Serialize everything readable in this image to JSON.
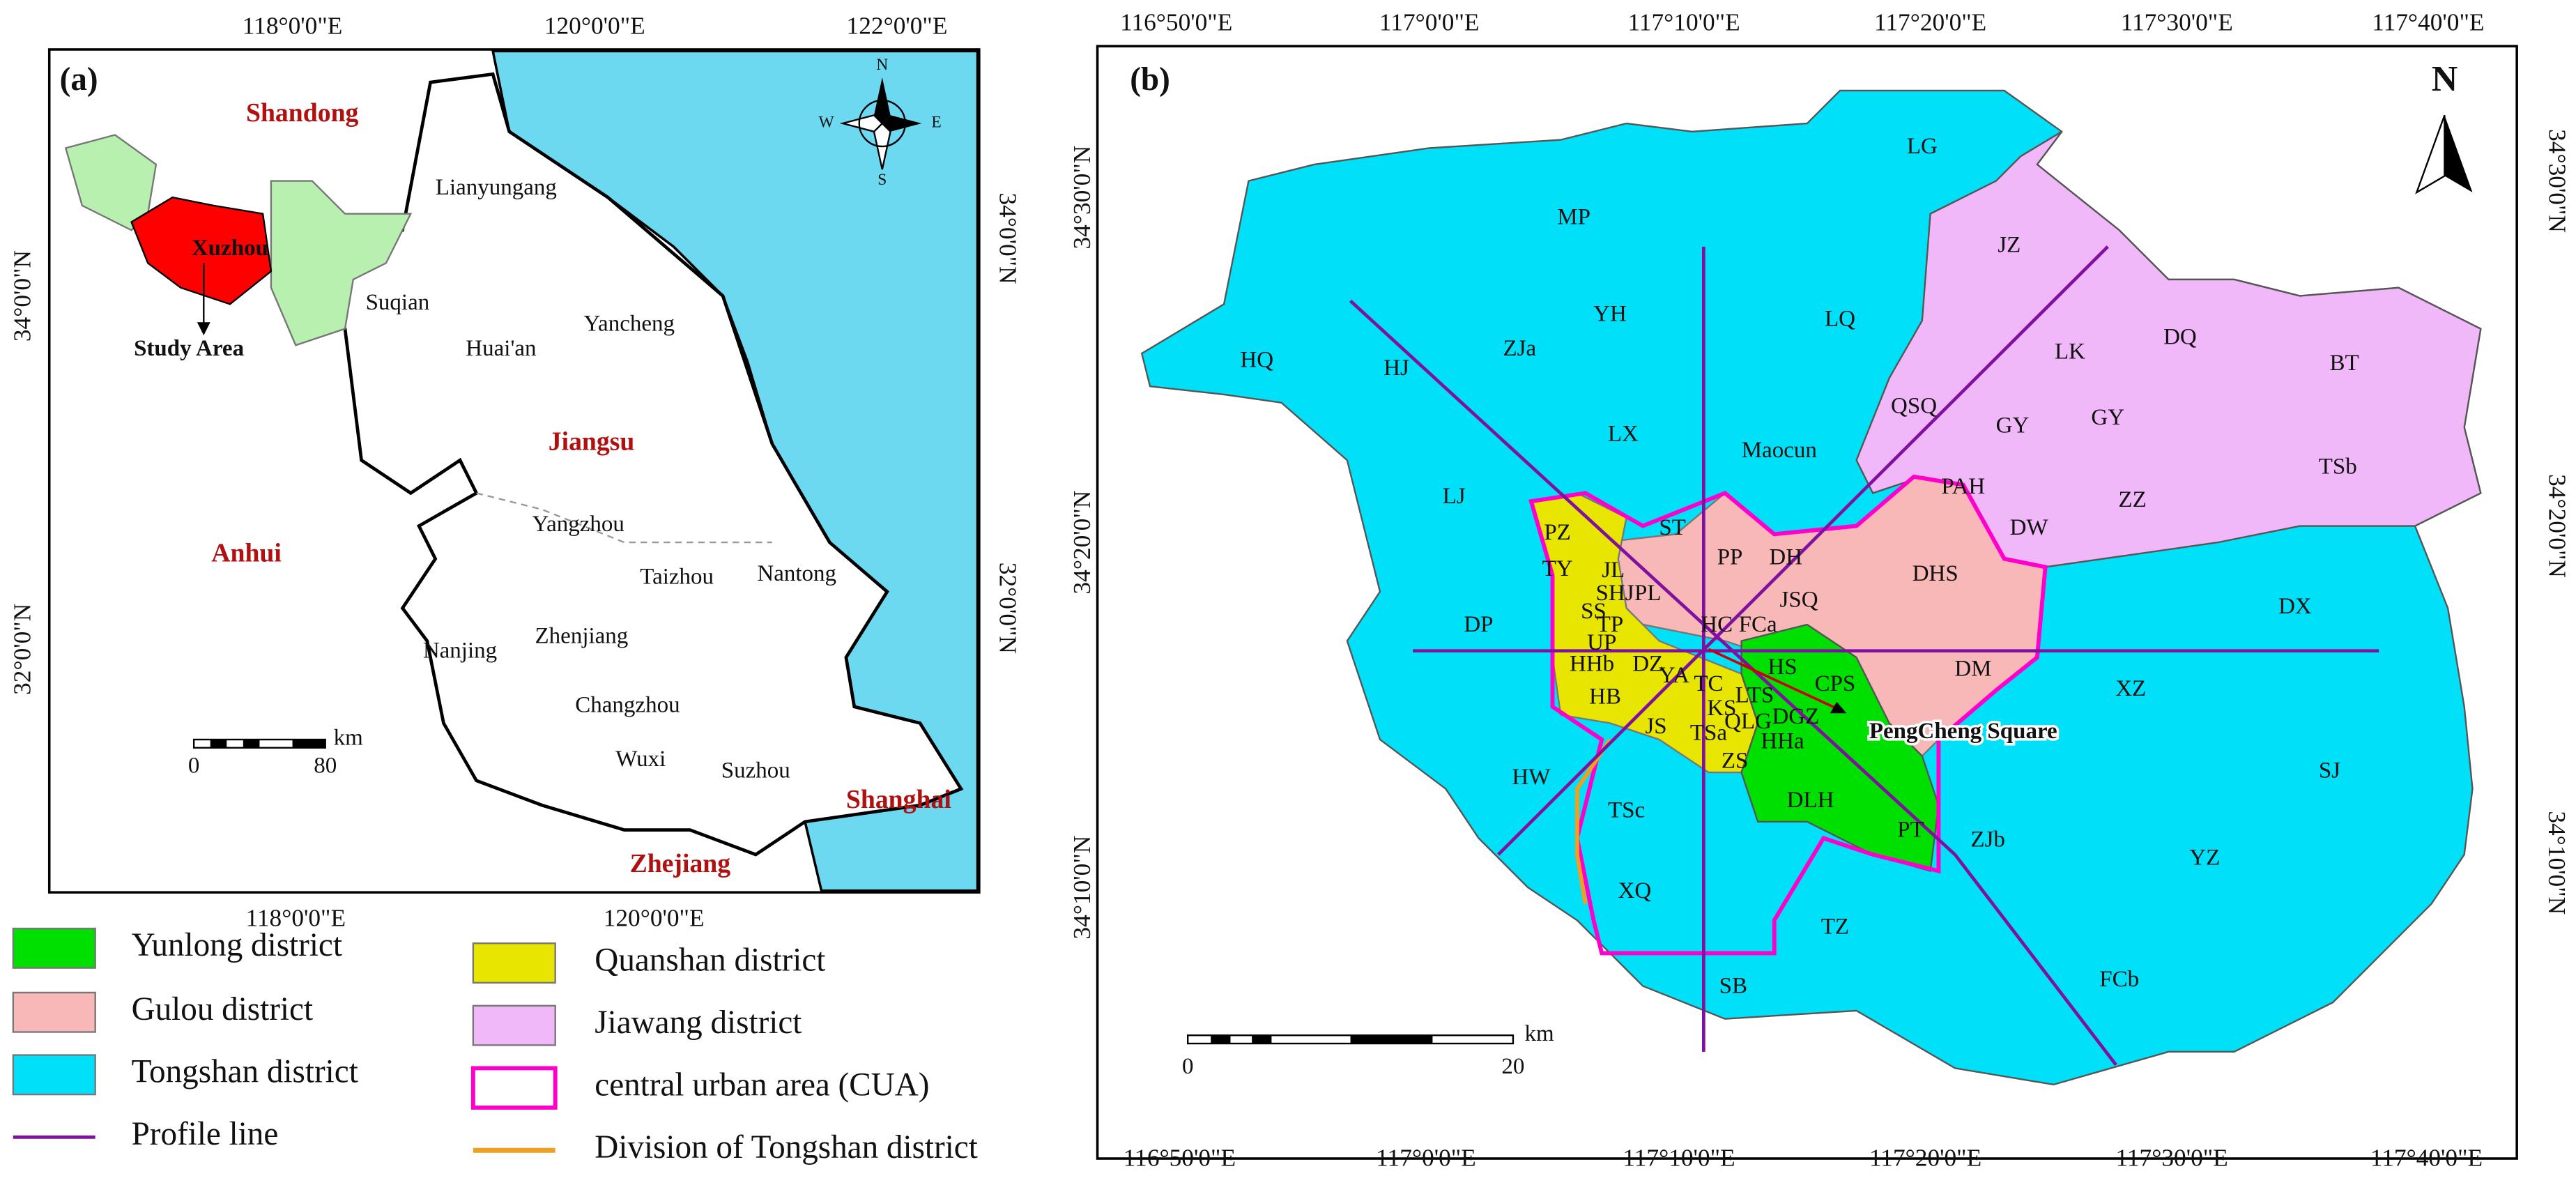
{
  "panel_a": {
    "label": "(a)",
    "top_ticks": [
      "118°0'0\"E",
      "120°0'0\"E",
      "122°0'0\"E"
    ],
    "bottom_ticks": [
      "118°0'0\"E",
      "120°0'0\"E"
    ],
    "left_ticks": [
      "34°0'0\"N",
      "32°0'0\"N"
    ],
    "right_ticks": [
      "34°0'0\"N",
      "32°0'0\"N"
    ],
    "places": [
      "Shandong",
      "Lianyungang",
      "Xuzhou",
      "Study Area",
      "Suqian",
      "Yancheng",
      "Huai'an",
      "Jiangsu",
      "Anhui",
      "Yangzhou",
      "Taizhou",
      "Nantong",
      "Nanjing",
      "Zhenjiang",
      "Changzhou",
      "Wuxi",
      "Suzhou",
      "Shanghai",
      "Zhejiang"
    ],
    "compass": [
      "N",
      "S",
      "W",
      "E"
    ],
    "scale_bar": {
      "unit": "km",
      "ticks": [
        0,
        80
      ]
    }
  },
  "panel_b": {
    "label": "(b)",
    "top_ticks": [
      "116°50'0\"E",
      "117°0'0\"E",
      "117°10'0\"E",
      "117°20'0\"E",
      "117°30'0\"E",
      "117°40'0\"E"
    ],
    "bottom_ticks": [
      "116°50'0\"E",
      "117°0'0\"E",
      "117°10'0\"E",
      "117°20'0\"E",
      "117°30'0\"E",
      "117°40'0\"E"
    ],
    "left_ticks": [
      "34°30'0\"N",
      "34°20'0\"N",
      "34°10'0\"N"
    ],
    "right_ticks": [
      "34°30'0\"N",
      "34°20'0\"N",
      "34°10'0\"N"
    ],
    "north": "N",
    "places": [
      "HQ",
      "HJ",
      "ZJa",
      "YH",
      "MP",
      "LX",
      "LQ",
      "LG",
      "Maocun",
      "JZ",
      "LK",
      "DQ",
      "BT",
      "QSQ",
      "GY",
      "GY",
      "PAH",
      "DW",
      "ZZ",
      "TSb",
      "LJ",
      "PZ",
      "TY",
      "ST",
      "JL",
      "PP",
      "DH",
      "DHS",
      "SHJ",
      "PL",
      "JSQ",
      "DP",
      "SS",
      "TP",
      "HC",
      "FCa",
      "DX",
      "UP",
      "HHb",
      "DZ",
      "YA",
      "HS",
      "DM",
      "CPS",
      "HB",
      "TC",
      "LTS",
      "XZ",
      "KS",
      "JS",
      "TSa",
      "QLG",
      "DGZ",
      "HHa",
      "SJ",
      "HW",
      "ZS",
      "DLH",
      "TSc",
      "PT",
      "ZJb",
      "YZ",
      "XQ",
      "TZ",
      "FCb",
      "SB"
    ],
    "landmark": "PengCheng Square",
    "scale_bar": {
      "unit": "km",
      "ticks": [
        0,
        20
      ]
    }
  },
  "legend": [
    "Yunlong district",
    "Gulou district",
    "Tongshan district",
    "Profile line",
    "Quanshan district",
    "Jiawang district",
    "central urban area (CUA)",
    "Division of Tongshan district"
  ]
}
